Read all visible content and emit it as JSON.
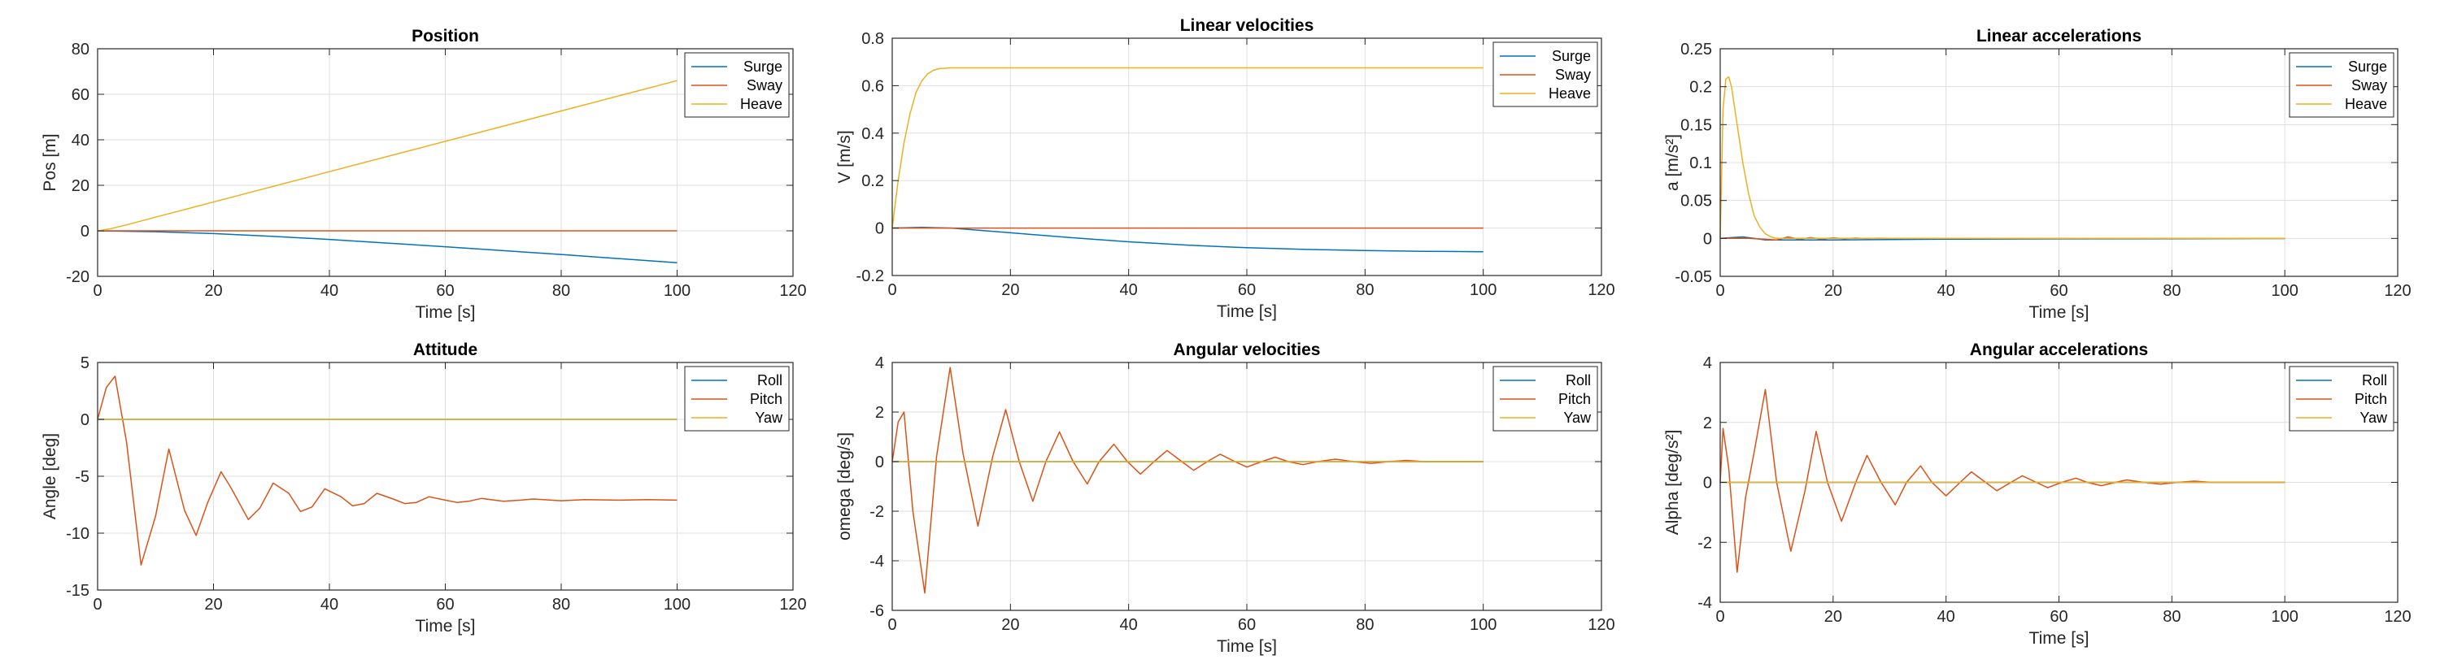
{
  "colors": {
    "c1": "#0072bd",
    "c2": "#d95319",
    "c3": "#edb120",
    "grid": "#dfdfdf",
    "axis": "#262626"
  },
  "chart_data": [
    {
      "type": "line",
      "title": "Position",
      "xlabel": "Time [s]",
      "ylabel": "Pos [m]",
      "xlim": [
        0,
        120
      ],
      "ylim": [
        -20,
        80
      ],
      "xticks": [
        0,
        20,
        40,
        60,
        80,
        100,
        120
      ],
      "xtick_labels": [
        "0",
        "20",
        "40",
        "60",
        "80",
        "100",
        "120"
      ],
      "yticks": [
        -20,
        0,
        20,
        40,
        60,
        80
      ],
      "ytick_labels": [
        "-20",
        "0",
        "20",
        "40",
        "60",
        "80"
      ],
      "grid": true,
      "legend": "top-right",
      "series": [
        {
          "name": "Surge",
          "color": "#0072bd",
          "x": [
            0,
            10,
            20,
            30,
            40,
            50,
            60,
            70,
            80,
            90,
            100
          ],
          "y": [
            0,
            -0.4,
            -1.2,
            -2.4,
            -3.8,
            -5.4,
            -7,
            -8.7,
            -10.4,
            -12.2,
            -14
          ]
        },
        {
          "name": "Sway",
          "color": "#d95319",
          "x": [
            0,
            100
          ],
          "y": [
            0,
            0
          ]
        },
        {
          "name": "Heave",
          "color": "#edb120",
          "x": [
            0,
            2,
            5,
            10,
            100
          ],
          "y": [
            0,
            0.8,
            2.6,
            6,
            66
          ]
        }
      ]
    },
    {
      "type": "line",
      "title": "Linear velocities",
      "xlabel": "Time [s]",
      "ylabel": "V [m/s]",
      "xlim": [
        0,
        120
      ],
      "ylim": [
        -0.2,
        0.8
      ],
      "xticks": [
        0,
        20,
        40,
        60,
        80,
        100,
        120
      ],
      "xtick_labels": [
        "0",
        "20",
        "40",
        "60",
        "80",
        "100",
        "120"
      ],
      "yticks": [
        -0.2,
        0,
        0.2,
        0.4,
        0.6,
        0.8
      ],
      "ytick_labels": [
        "-0.2",
        "0",
        "0.2",
        "0.4",
        "0.6",
        "0.8"
      ],
      "grid": true,
      "legend": "top-right",
      "series": [
        {
          "name": "Surge",
          "color": "#0072bd",
          "x": [
            0,
            5,
            10,
            15,
            20,
            30,
            40,
            50,
            60,
            70,
            80,
            90,
            100
          ],
          "y": [
            0,
            0.003,
            0,
            -0.01,
            -0.02,
            -0.04,
            -0.058,
            -0.072,
            -0.083,
            -0.09,
            -0.095,
            -0.098,
            -0.1
          ]
        },
        {
          "name": "Sway",
          "color": "#d95319",
          "x": [
            0,
            100
          ],
          "y": [
            0,
            0
          ]
        },
        {
          "name": "Heave",
          "color": "#edb120",
          "x": [
            0,
            0.5,
            1,
            2,
            3,
            4,
            5,
            6,
            7,
            8,
            10,
            100
          ],
          "y": [
            0,
            0.1,
            0.2,
            0.36,
            0.48,
            0.57,
            0.62,
            0.65,
            0.665,
            0.672,
            0.675,
            0.675
          ]
        }
      ]
    },
    {
      "type": "line",
      "title": "Linear accelerations",
      "xlabel": "Time [s]",
      "ylabel": "a [m/s²]",
      "xlim": [
        0,
        120
      ],
      "ylim": [
        -0.05,
        0.25
      ],
      "xticks": [
        0,
        20,
        40,
        60,
        80,
        100,
        120
      ],
      "xtick_labels": [
        "0",
        "20",
        "40",
        "60",
        "80",
        "100",
        "120"
      ],
      "yticks": [
        -0.05,
        0,
        0.05,
        0.1,
        0.15,
        0.2,
        0.25
      ],
      "ytick_labels": [
        "-0.05",
        "0",
        "0.05",
        "0.1",
        "0.15",
        "0.2",
        "0.25"
      ],
      "grid": true,
      "legend": "top-right",
      "series": [
        {
          "name": "Surge",
          "color": "#0072bd",
          "x": [
            0,
            2,
            4,
            6,
            8,
            10,
            15,
            20,
            30,
            40,
            60,
            100
          ],
          "y": [
            0,
            0.001,
            0.002,
            0,
            -0.002,
            -0.002,
            -0.002,
            -0.002,
            -0.0015,
            -0.001,
            -0.0006,
            -0.0002
          ]
        },
        {
          "name": "Sway",
          "color": "#d95319",
          "x": [
            0,
            5,
            10,
            12,
            14,
            16,
            18,
            20,
            22,
            24,
            26,
            28,
            30,
            35,
            40,
            100
          ],
          "y": [
            0,
            0,
            -0.002,
            0.002,
            -0.001,
            0.001,
            -0.0008,
            0.0008,
            -0.0005,
            0.0005,
            -0.0003,
            0.0003,
            0,
            0,
            0,
            0
          ]
        },
        {
          "name": "Heave",
          "color": "#edb120",
          "x": [
            0,
            0.5,
            1,
            1.5,
            2,
            3,
            4,
            5,
            6,
            7,
            8,
            9,
            10,
            12,
            100
          ],
          "y": [
            0,
            0.17,
            0.21,
            0.213,
            0.2,
            0.15,
            0.1,
            0.06,
            0.03,
            0.015,
            0.006,
            0.002,
            0,
            0,
            0
          ]
        }
      ]
    },
    {
      "type": "line",
      "title": "Attitude",
      "xlabel": "Time [s]",
      "ylabel": "Angle [deg]",
      "xlim": [
        0,
        120
      ],
      "ylim": [
        -15,
        5
      ],
      "xticks": [
        0,
        20,
        40,
        60,
        80,
        100,
        120
      ],
      "xtick_labels": [
        "0",
        "20",
        "40",
        "60",
        "80",
        "100",
        "120"
      ],
      "yticks": [
        -15,
        -10,
        -5,
        0,
        5
      ],
      "ytick_labels": [
        "-15",
        "-10",
        "-5",
        "0",
        "5"
      ],
      "grid": true,
      "legend": "top-right",
      "series": [
        {
          "name": "Roll",
          "color": "#0072bd",
          "x": [
            0,
            100
          ],
          "y": [
            0,
            0
          ]
        },
        {
          "name": "Pitch",
          "color": "#d95319",
          "x": [
            0,
            1.5,
            3,
            5,
            7.5,
            10,
            12.3,
            15,
            17,
            19,
            21.3,
            23,
            26,
            28,
            30.3,
            33,
            35,
            37,
            39.2,
            42,
            44,
            46,
            48.2,
            51,
            53,
            55,
            57.2,
            60,
            62,
            64,
            66.2,
            70,
            73,
            75.2,
            80,
            84,
            90,
            95,
            100
          ],
          "y": [
            0,
            2.8,
            3.8,
            -2,
            -12.8,
            -8.5,
            -2.6,
            -8,
            -10.2,
            -7.3,
            -4.6,
            -6,
            -8.8,
            -7.8,
            -5.6,
            -6.5,
            -8.1,
            -7.7,
            -6.1,
            -6.8,
            -7.6,
            -7.4,
            -6.5,
            -7,
            -7.4,
            -7.3,
            -6.8,
            -7.1,
            -7.3,
            -7.2,
            -6.95,
            -7.2,
            -7.1,
            -7,
            -7.15,
            -7.05,
            -7.1,
            -7.05,
            -7.1
          ]
        },
        {
          "name": "Yaw",
          "color": "#edb120",
          "x": [
            0,
            100
          ],
          "y": [
            0,
            0
          ]
        }
      ]
    },
    {
      "type": "line",
      "title": "Angular velocities",
      "xlabel": "Time [s]",
      "ylabel": "omega [deg/s]",
      "xlim": [
        0,
        120
      ],
      "ylim": [
        -6,
        4
      ],
      "xticks": [
        0,
        20,
        40,
        60,
        80,
        100,
        120
      ],
      "xtick_labels": [
        "0",
        "20",
        "40",
        "60",
        "80",
        "100",
        "120"
      ],
      "yticks": [
        -6,
        -4,
        -2,
        0,
        2,
        4
      ],
      "ytick_labels": [
        "-6",
        "-4",
        "-2",
        "0",
        "2",
        "4"
      ],
      "grid": true,
      "legend": "top-right",
      "series": [
        {
          "name": "Roll",
          "color": "#0072bd",
          "x": [
            0,
            100
          ],
          "y": [
            0,
            0
          ]
        },
        {
          "name": "Pitch",
          "color": "#d95319",
          "x": [
            0,
            1,
            2,
            3.5,
            5.5,
            7.5,
            9.8,
            12,
            14.5,
            17,
            19.2,
            21.5,
            23.8,
            26,
            28.3,
            30.6,
            33,
            35,
            37.5,
            39.8,
            42,
            44.3,
            46.5,
            49,
            51,
            53.3,
            55.5,
            58,
            60,
            62.5,
            64.8,
            67,
            69.5,
            72,
            75,
            78,
            81,
            84,
            87,
            90,
            95,
            100
          ],
          "y": [
            0,
            1.6,
            2,
            -2,
            -5.3,
            0.2,
            3.8,
            0.3,
            -2.6,
            0.2,
            2.1,
            0,
            -1.6,
            0,
            1.2,
            0,
            -0.9,
            0,
            0.7,
            0,
            -0.5,
            0,
            0.45,
            0,
            -0.35,
            0,
            0.3,
            0,
            -0.22,
            0,
            0.18,
            0,
            -0.12,
            0,
            0.1,
            0,
            -0.07,
            0,
            0.05,
            0,
            0,
            0
          ]
        },
        {
          "name": "Yaw",
          "color": "#edb120",
          "x": [
            0,
            100
          ],
          "y": [
            0,
            0
          ]
        }
      ]
    },
    {
      "type": "line",
      "title": "Angular accelerations",
      "xlabel": "Time [s]",
      "ylabel": "Alpha [deg/s²]",
      "xlim": [
        0,
        120
      ],
      "ylim": [
        -4,
        4
      ],
      "xticks": [
        0,
        20,
        40,
        60,
        80,
        100,
        120
      ],
      "xtick_labels": [
        "0",
        "20",
        "40",
        "60",
        "80",
        "100",
        "120"
      ],
      "yticks": [
        -4,
        -2,
        0,
        2,
        4
      ],
      "ytick_labels": [
        "-4",
        "-2",
        "0",
        "2",
        "4"
      ],
      "grid": true,
      "legend": "top-right",
      "series": [
        {
          "name": "Roll",
          "color": "#0072bd",
          "x": [
            0,
            100
          ],
          "y": [
            0,
            0
          ]
        },
        {
          "name": "Pitch",
          "color": "#d95319",
          "x": [
            0,
            0.5,
            1.5,
            3,
            4.5,
            6,
            8,
            10,
            12.5,
            15,
            17,
            19,
            21.5,
            24,
            26,
            28.5,
            31,
            33,
            35.5,
            37.5,
            40,
            42.5,
            44.5,
            47,
            49,
            51.5,
            53.5,
            56,
            58,
            60.5,
            63,
            65,
            67.5,
            70,
            72,
            75,
            78,
            81,
            84,
            87,
            90,
            95,
            100
          ],
          "y": [
            0,
            1.8,
            0.5,
            -3,
            -0.5,
            1,
            3.1,
            0,
            -2.3,
            -0.3,
            1.7,
            0,
            -1.3,
            0,
            0.9,
            0,
            -0.75,
            0,
            0.55,
            0,
            -0.45,
            0,
            0.35,
            0,
            -0.28,
            0,
            0.22,
            0,
            -0.18,
            0,
            0.14,
            0,
            -0.11,
            0,
            0.08,
            0,
            -0.06,
            0,
            0.04,
            0,
            0,
            0,
            0
          ]
        },
        {
          "name": "Yaw",
          "color": "#edb120",
          "x": [
            0,
            100
          ],
          "y": [
            0,
            0
          ]
        }
      ]
    }
  ]
}
